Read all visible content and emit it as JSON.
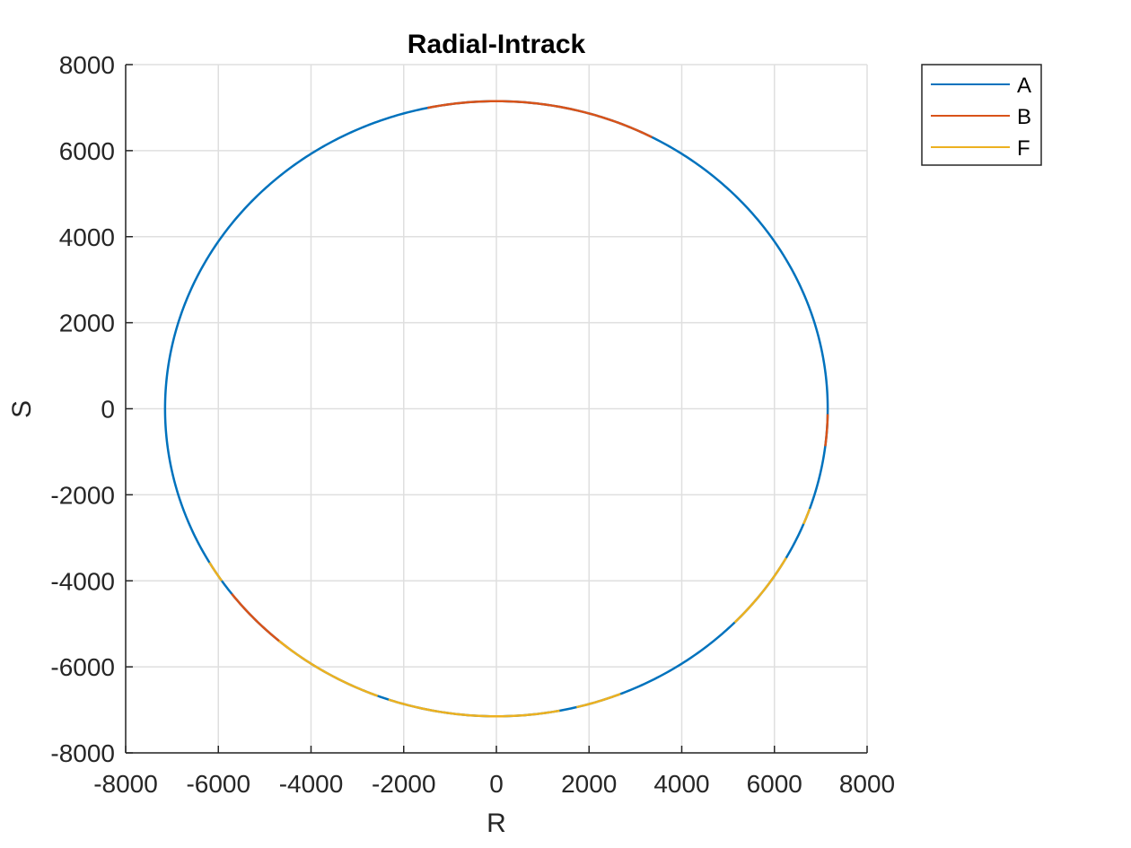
{
  "chart_data": {
    "type": "line",
    "title": "Radial-Intrack",
    "xlabel": "R",
    "ylabel": "S",
    "xlim": [
      -8000,
      8000
    ],
    "ylim": [
      -8000,
      8000
    ],
    "xticks": [
      -8000,
      -6000,
      -4000,
      -2000,
      0,
      2000,
      4000,
      6000,
      8000
    ],
    "yticks": [
      -8000,
      -6000,
      -4000,
      -2000,
      0,
      2000,
      4000,
      6000,
      8000
    ],
    "xtick_labels": [
      "-8000",
      "-6000",
      "-4000",
      "-2000",
      "0",
      "2000",
      "4000",
      "6000",
      "8000"
    ],
    "ytick_labels": [
      "-8000",
      "-6000",
      "-4000",
      "-2000",
      "0",
      "2000",
      "4000",
      "6000",
      "8000"
    ],
    "grid": true,
    "legend_position": "outside-top-right",
    "series": [
      {
        "name": "A",
        "color": "#0072BD",
        "description_points": "circle radius ~7150 centered at origin (full orbit)",
        "radius": 7150,
        "arcs_deg": [
          [
            0,
            360
          ]
        ]
      },
      {
        "name": "B",
        "color": "#D95319",
        "radius": 7150,
        "arcs_deg": [
          [
            62,
            102
          ],
          [
            -7,
            -1
          ],
          [
            -143,
            -129
          ]
        ]
      },
      {
        "name": "F",
        "color": "#EDB120",
        "radius": 7150,
        "arcs_deg": [
          [
            -131,
            -111
          ],
          [
            -109,
            -79
          ],
          [
            -76,
            -68
          ],
          [
            -44,
            -29
          ],
          [
            -22,
            -19
          ],
          [
            -150,
            -146
          ]
        ]
      }
    ]
  }
}
